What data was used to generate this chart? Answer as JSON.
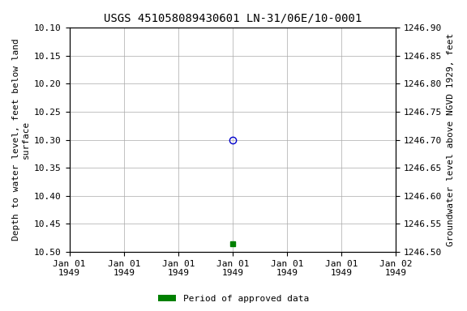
{
  "title": "USGS 451058089430601 LN-31/06E/10-0001",
  "ylabel_left": "Depth to water level, feet below land\nsurface",
  "ylabel_right": "Groundwater level above NGVD 1929, feet",
  "ylim_left": [
    10.1,
    10.5
  ],
  "ylim_right": [
    1246.5,
    1246.9
  ],
  "yticks_left": [
    10.1,
    10.15,
    10.2,
    10.25,
    10.3,
    10.35,
    10.4,
    10.45,
    10.5
  ],
  "yticks_right": [
    1246.5,
    1246.55,
    1246.6,
    1246.65,
    1246.7,
    1246.75,
    1246.8,
    1246.85,
    1246.9
  ],
  "point1_x": 3.0,
  "point1_y": 10.3,
  "point1_color": "#0000cc",
  "point1_marker": "o",
  "point2_x": 3.0,
  "point2_y": 10.486,
  "point2_color": "#008000",
  "point2_marker": "s",
  "point2_size": 4,
  "xlim": [
    0,
    6
  ],
  "xtick_positions": [
    0,
    1,
    2,
    3,
    4,
    5,
    6
  ],
  "xtick_labels": [
    "Jan 01\n1949",
    "Jan 01\n1949",
    "Jan 01\n1949",
    "Jan 01\n1949",
    "Jan 01\n1949",
    "Jan 01\n1949",
    "Jan 02\n1949"
  ],
  "legend_label": "Period of approved data",
  "legend_color": "#008000",
  "bg_color": "#ffffff",
  "grid_color": "#aaaaaa",
  "title_fontsize": 10,
  "label_fontsize": 8,
  "tick_fontsize": 8
}
